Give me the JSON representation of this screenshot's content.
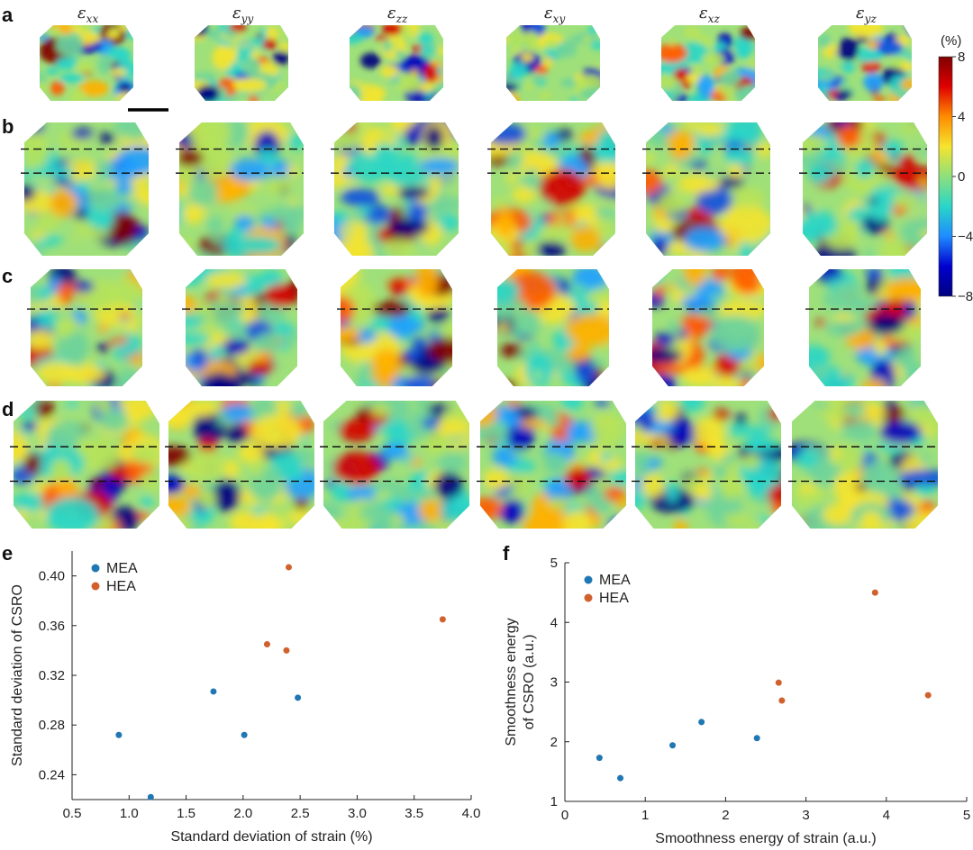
{
  "panels": {
    "a": "a",
    "b": "b",
    "c": "c",
    "d": "d",
    "e": "e",
    "f": "f"
  },
  "strain_components": [
    {
      "sym": "ε",
      "sub": "xx"
    },
    {
      "sym": "ε",
      "sub": "yy"
    },
    {
      "sym": "ε",
      "sub": "zz"
    },
    {
      "sym": "ε",
      "sub": "xy"
    },
    {
      "sym": "ε",
      "sub": "xz"
    },
    {
      "sym": "ε",
      "sub": "yz"
    }
  ],
  "colorbar": {
    "unit": "(%)",
    "ticks": [
      "8",
      "4",
      "0",
      "−4",
      "−8"
    ],
    "colormap": [
      "#7f0000",
      "#e00000",
      "#ff8c00",
      "#f5e42e",
      "#8de07c",
      "#29d6c8",
      "#1e8cff",
      "#0000d0",
      "#00007f"
    ]
  },
  "chart_data": [
    {
      "type": "scatter",
      "panel": "e",
      "xlabel": "Standard deviation of strain (%)",
      "ylabel": "Standard deviation of CSRO",
      "xlim": [
        0.5,
        4.0
      ],
      "ylim": [
        0.22,
        0.42
      ],
      "xticks": [
        "0.5",
        "1.0",
        "1.5",
        "2.0",
        "2.5",
        "3.0",
        "3.5",
        "4.0"
      ],
      "yticks": [
        "0.24",
        "0.28",
        "0.32",
        "0.36",
        "0.40"
      ],
      "legend_position": "top-left",
      "series": [
        {
          "name": "MEA",
          "color": "#1f77b4",
          "points": [
            [
              0.91,
              0.272
            ],
            [
              1.19,
              0.222
            ],
            [
              1.74,
              0.307
            ],
            [
              2.01,
              0.272
            ],
            [
              2.48,
              0.302
            ]
          ]
        },
        {
          "name": "HEA",
          "color": "#d1612c",
          "points": [
            [
              2.21,
              0.345
            ],
            [
              2.38,
              0.34
            ],
            [
              2.4,
              0.407
            ],
            [
              3.75,
              0.365
            ]
          ]
        }
      ]
    },
    {
      "type": "scatter",
      "panel": "f",
      "xlabel": "Smoothness energy of strain (a.u.)",
      "ylabel": [
        "Smoothness energy",
        "of CSRO (a.u.)"
      ],
      "xlim": [
        0,
        5
      ],
      "ylim": [
        1,
        5
      ],
      "xticks": [
        "0",
        "1",
        "2",
        "3",
        "4",
        "5"
      ],
      "yticks": [
        "1",
        "2",
        "3",
        "4",
        "5"
      ],
      "legend_position": "top-left",
      "series": [
        {
          "name": "MEA",
          "color": "#1f77b4",
          "points": [
            [
              0.43,
              1.73
            ],
            [
              0.69,
              1.39
            ],
            [
              1.34,
              1.94
            ],
            [
              1.7,
              2.33
            ],
            [
              2.39,
              2.06
            ]
          ]
        },
        {
          "name": "HEA",
          "color": "#d1612c",
          "points": [
            [
              2.66,
              2.99
            ],
            [
              2.7,
              2.69
            ],
            [
              3.86,
              4.5
            ],
            [
              4.52,
              2.78
            ]
          ]
        }
      ]
    }
  ]
}
